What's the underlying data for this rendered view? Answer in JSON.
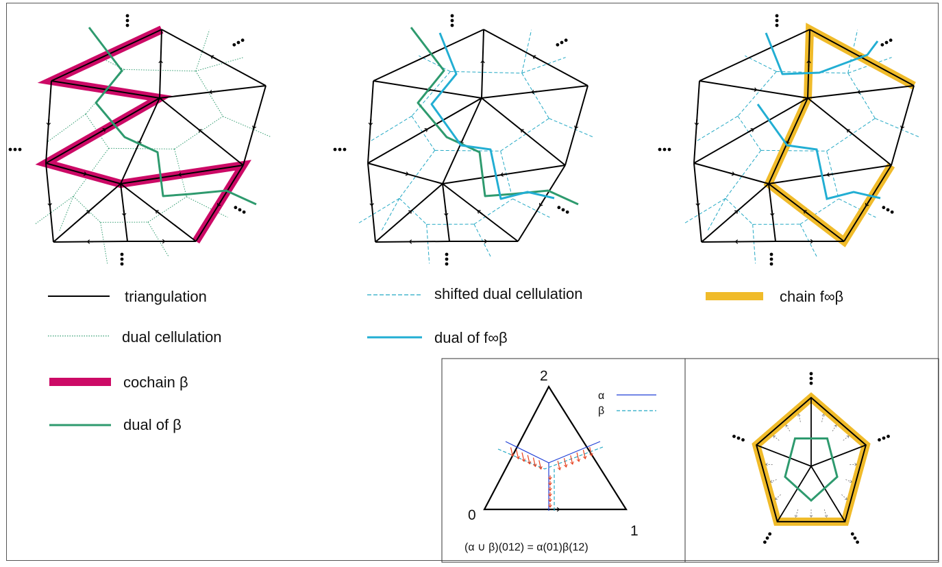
{
  "colors": {
    "triangulation": "#000000",
    "dual_cellulation": "#2e9a6e",
    "cochain": "#cc0a66",
    "dual_beta": "#2e9a6e",
    "shifted_dual": "#22a8c4",
    "dual_f_beta": "#22aed3",
    "chain_f_beta": "#f0bb2a",
    "alpha_line": "#1f3fd6",
    "beta_line": "#22a8c4",
    "cup_arrows": "#e8401e"
  },
  "legend": {
    "triangulation": "triangulation",
    "dual_cellulation": "dual cellulation",
    "cochain": "cochain β",
    "dual_beta": "dual of β",
    "shifted_dual": "shifted dual cellulation",
    "dual_f_beta": "dual of f∞β",
    "chain_f_beta": "chain f∞β"
  },
  "inset": {
    "vertex_0": "0",
    "vertex_1": "1",
    "vertex_2": "2",
    "alpha": "α",
    "beta": "β",
    "formula": "(α ∪ β)(012) = α(01)β(12)"
  }
}
